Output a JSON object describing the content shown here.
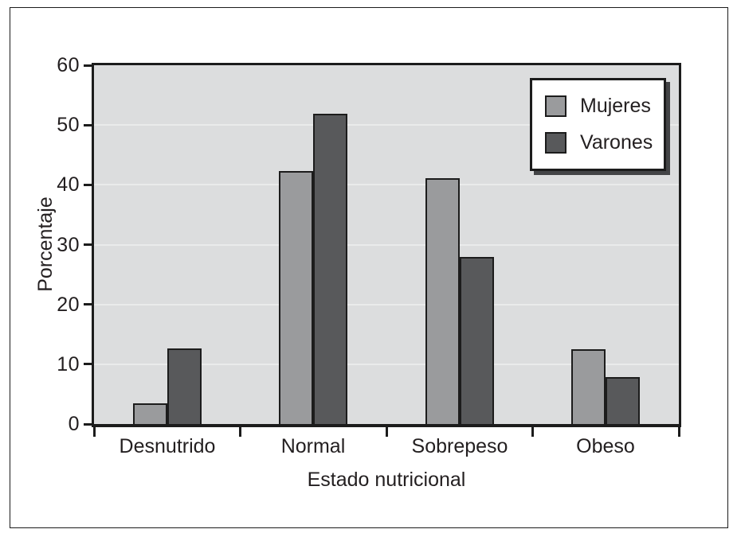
{
  "chart_data": {
    "type": "bar",
    "title": "",
    "xlabel": "Estado nutricional",
    "ylabel": "Porcentaje",
    "categories": [
      "Desnutrido",
      "Normal",
      "Sobrepeso",
      "Obeso"
    ],
    "series": [
      {
        "name": "Mujeres",
        "color": "#9a9b9d",
        "values": [
          3.5,
          42.3,
          41.1,
          12.5
        ]
      },
      {
        "name": "Varones",
        "color": "#58595b",
        "values": [
          12.6,
          51.9,
          27.9,
          7.8
        ]
      }
    ],
    "ylim": [
      0,
      60
    ],
    "y_ticks": [
      0,
      10,
      20,
      30,
      40,
      50,
      60
    ],
    "grid": true,
    "gridlines_at": [
      10,
      20,
      30,
      40,
      50
    ],
    "legend_position": "top-right",
    "colors": {
      "plot_background": "#dcddde",
      "axis": "#1c1c1c",
      "gridline": "#eceded",
      "legend_background": "#ffffff",
      "legend_shadow": "#434446"
    }
  }
}
